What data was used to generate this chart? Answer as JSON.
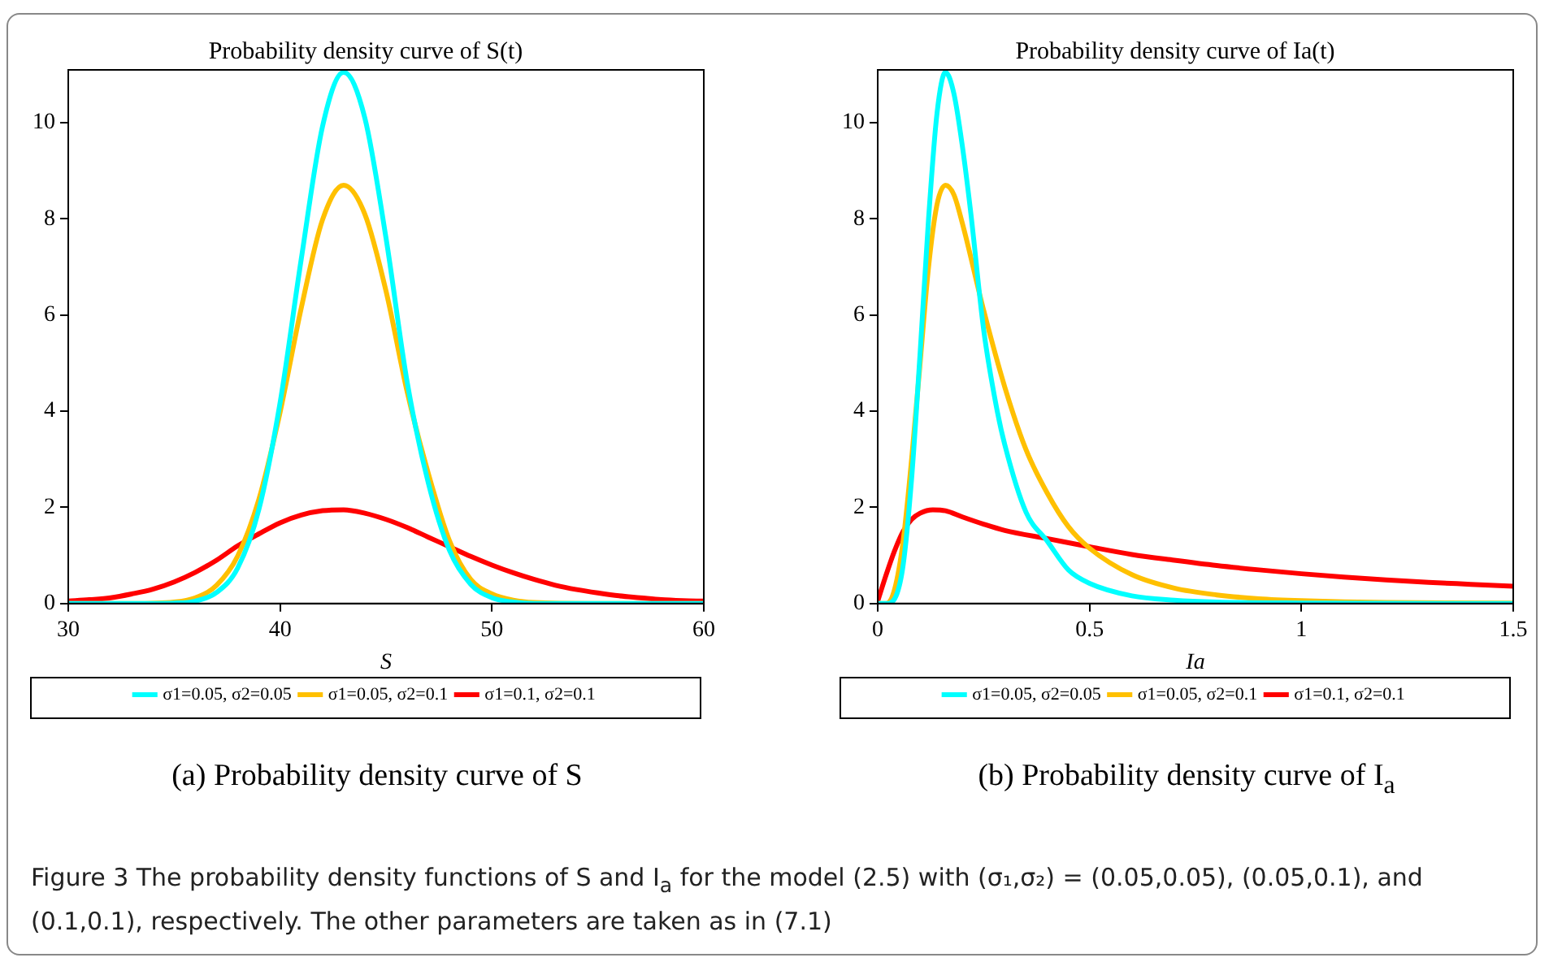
{
  "chart_data": [
    {
      "type": "line",
      "title": "Probability density curve of S(t)",
      "xlabel": "S",
      "xlim": [
        30,
        60
      ],
      "xticks": [
        30,
        40,
        50,
        60
      ],
      "ylim": [
        0,
        11.1
      ],
      "yticks": [
        0,
        2,
        4,
        6,
        8,
        10
      ],
      "grid": false,
      "legend": "bottom",
      "marker": "none",
      "line_style": "solid",
      "annotations": [
        "(a) Probability density curve of S"
      ],
      "series": [
        {
          "name": "σ1=0.05, σ2=0.05",
          "color": "#00ffff",
          "x": [
            30,
            33,
            35,
            36,
            37,
            38,
            39,
            40,
            41,
            42,
            43,
            44,
            45,
            46,
            47,
            48,
            49,
            50,
            51,
            52,
            55,
            60
          ],
          "values": [
            0,
            0,
            0.01,
            0.05,
            0.23,
            0.74,
            1.96,
            4.18,
            7.17,
            9.92,
            11.05,
            10.1,
            7.6,
            4.6,
            2.5,
            1.1,
            0.4,
            0.12,
            0.03,
            0,
            0,
            0
          ]
        },
        {
          "name": "σ1=0.05, σ2=0.1",
          "color": "#ffc000",
          "x": [
            30,
            33,
            35,
            36,
            37,
            38,
            39,
            40,
            41,
            42,
            43,
            44,
            45,
            46,
            47,
            48,
            49,
            50,
            51,
            52,
            55,
            60
          ],
          "values": [
            0,
            0,
            0.03,
            0.12,
            0.38,
            0.99,
            2.17,
            3.98,
            6.15,
            7.98,
            8.7,
            8.1,
            6.5,
            4.4,
            2.7,
            1.3,
            0.5,
            0.2,
            0.07,
            0.02,
            0,
            0
          ]
        },
        {
          "name": "σ1=0.1, σ2=0.1",
          "color": "#ff0000",
          "x": [
            30,
            31,
            32,
            33,
            34,
            35,
            36,
            37,
            38,
            39,
            40,
            41,
            42,
            43,
            44,
            45,
            46,
            47,
            48,
            49,
            50,
            51,
            52,
            53,
            54,
            55,
            56,
            57,
            58,
            59,
            60
          ],
          "values": [
            0.05,
            0.08,
            0.12,
            0.2,
            0.3,
            0.45,
            0.65,
            0.9,
            1.2,
            1.45,
            1.68,
            1.84,
            1.93,
            1.95,
            1.88,
            1.75,
            1.58,
            1.38,
            1.18,
            0.98,
            0.8,
            0.64,
            0.5,
            0.38,
            0.29,
            0.22,
            0.16,
            0.12,
            0.08,
            0.06,
            0.05
          ]
        }
      ]
    },
    {
      "type": "line",
      "title": "Probability density curve of Ia(t)",
      "xlabel": "Ia",
      "xlim": [
        0,
        1.5
      ],
      "xticks": [
        0,
        0.5,
        1,
        1.5
      ],
      "ylim": [
        0,
        11.1
      ],
      "yticks": [
        0,
        2,
        4,
        6,
        8,
        10
      ],
      "grid": false,
      "legend": "bottom",
      "marker": "none",
      "line_style": "solid",
      "annotations": [
        "(b) Probability density curve of I$_{a}$"
      ],
      "series": [
        {
          "name": "σ1=0.05, σ2=0.05",
          "color": "#00ffff",
          "x": [
            0,
            0.02,
            0.04,
            0.06,
            0.08,
            0.1,
            0.12,
            0.14,
            0.16,
            0.18,
            0.2,
            0.22,
            0.25,
            0.28,
            0.3,
            0.35,
            0.4,
            0.45,
            0.5,
            0.6,
            0.7,
            0.8,
            1,
            1.5
          ],
          "values": [
            0,
            0,
            0.1,
            0.8,
            2.6,
            5.2,
            8,
            10.2,
            11.05,
            10.6,
            9.5,
            8.1,
            5.7,
            4.1,
            3.3,
            1.9,
            1.3,
            0.7,
            0.42,
            0.16,
            0.07,
            0.03,
            0.01,
            0
          ]
        },
        {
          "name": "σ1=0.05, σ2=0.1",
          "color": "#ffc000",
          "x": [
            0,
            0.02,
            0.04,
            0.06,
            0.08,
            0.1,
            0.12,
            0.14,
            0.16,
            0.18,
            0.2,
            0.25,
            0.3,
            0.35,
            0.4,
            0.45,
            0.5,
            0.6,
            0.7,
            0.8,
            0.9,
            1,
            1.2,
            1.5
          ],
          "values": [
            0,
            0,
            0.3,
            1.3,
            3,
            5,
            7,
            8.3,
            8.7,
            8.5,
            7.9,
            6.1,
            4.5,
            3.2,
            2.3,
            1.6,
            1.15,
            0.6,
            0.32,
            0.18,
            0.1,
            0.06,
            0.02,
            0.01
          ]
        },
        {
          "name": "σ1=0.1, σ2=0.1",
          "color": "#ff0000",
          "x": [
            0,
            0.02,
            0.04,
            0.06,
            0.08,
            0.1,
            0.13,
            0.16,
            0.2,
            0.25,
            0.3,
            0.4,
            0.5,
            0.6,
            0.7,
            0.8,
            0.9,
            1,
            1.1,
            1.2,
            1.3,
            1.4,
            1.5
          ],
          "values": [
            0.05,
            0.6,
            1.1,
            1.5,
            1.75,
            1.88,
            1.95,
            1.93,
            1.8,
            1.65,
            1.52,
            1.35,
            1.18,
            1.02,
            0.9,
            0.79,
            0.7,
            0.62,
            0.55,
            0.49,
            0.44,
            0.4,
            0.36
          ]
        }
      ]
    },
    {
      "type": "other",
      "annotations": [
        "Figure 3  The probability density functions of S and I$_{a}$ for the model (2.5) with (σ₁,σ₂) = (0.05,0.05), (0.05,0.1), and (0.1,0.1), respectively. The other parameters are taken as in (7.1)"
      ]
    }
  ]
}
